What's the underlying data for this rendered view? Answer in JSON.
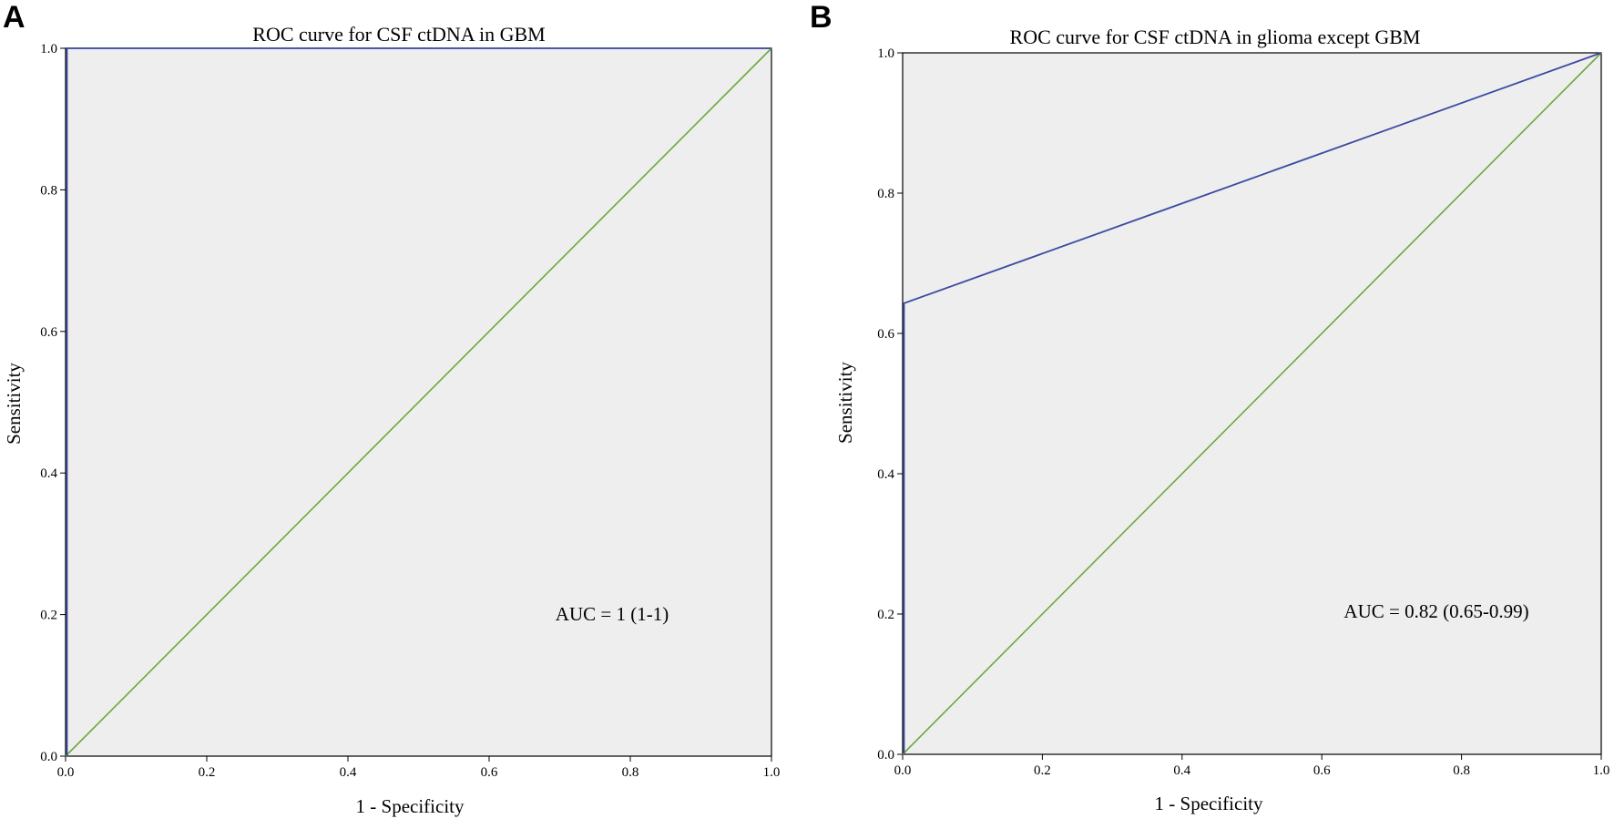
{
  "colors": {
    "plot_background": "#eeeeee",
    "roc_line": "#3b4aa0",
    "reference_line": "#6aaa3a",
    "axis": "#000000"
  },
  "chart_data": [
    {
      "type": "line",
      "panel": "A",
      "title": "ROC curve for CSF ctDNA in GBM",
      "xlabel": "1 - Specificity",
      "ylabel": "Sensitivity",
      "xlim": [
        0,
        1
      ],
      "ylim": [
        0,
        1
      ],
      "xticks": [
        "0.0",
        "0.2",
        "0.4",
        "0.6",
        "0.8",
        "1.0"
      ],
      "yticks": [
        "0.0",
        "0.2",
        "0.4",
        "0.6",
        "0.8",
        "1.0"
      ],
      "grid": false,
      "annotation": "AUC = 1 (1-1)",
      "series": [
        {
          "role": "roc",
          "x": [
            0,
            0,
            1
          ],
          "y": [
            0,
            1,
            1
          ]
        },
        {
          "role": "reference",
          "x": [
            0,
            1
          ],
          "y": [
            0,
            1
          ]
        }
      ]
    },
    {
      "type": "line",
      "panel": "B",
      "title": "ROC curve for CSF ctDNA in glioma except GBM",
      "xlabel": "1 - Specificity",
      "ylabel": "Sensitivity",
      "xlim": [
        0,
        1
      ],
      "ylim": [
        0,
        1
      ],
      "xticks": [
        "0.0",
        "0.2",
        "0.4",
        "0.6",
        "0.8",
        "1.0"
      ],
      "yticks": [
        "0.0",
        "0.2",
        "0.4",
        "0.6",
        "0.8",
        "1.0"
      ],
      "grid": false,
      "annotation": "AUC = 0.82 (0.65-0.99)",
      "series": [
        {
          "role": "roc",
          "x": [
            0,
            0,
            1
          ],
          "y": [
            0,
            0.643,
            1
          ]
        },
        {
          "role": "reference",
          "x": [
            0,
            1
          ],
          "y": [
            0,
            1
          ]
        }
      ]
    }
  ]
}
